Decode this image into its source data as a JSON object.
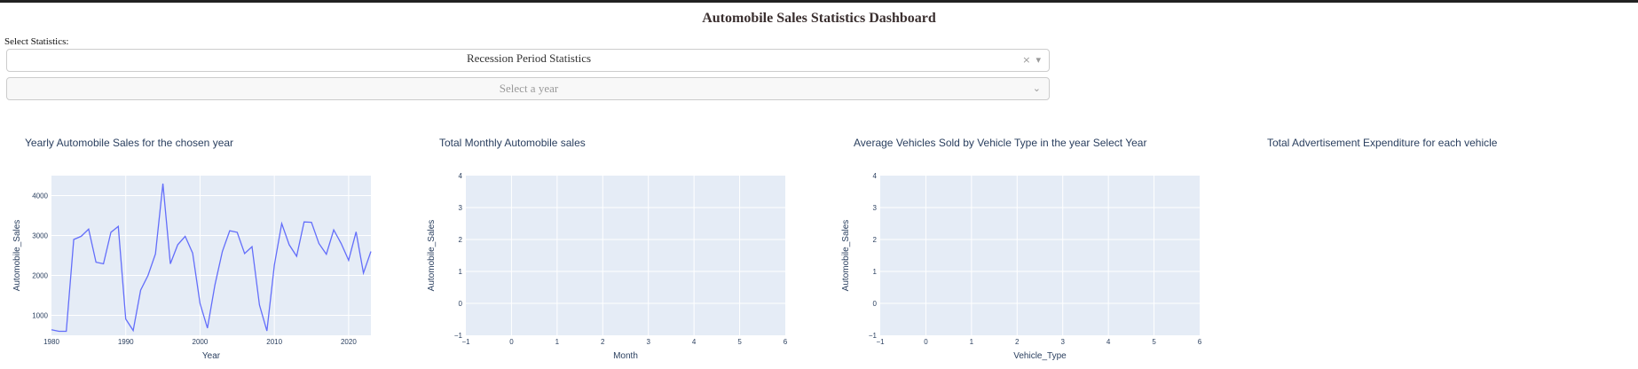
{
  "page": {
    "title": "Automobile Sales Statistics Dashboard",
    "statistics_label": "Select Statistics:",
    "statistics_value": "Recession Period Statistics",
    "year_placeholder": "Select a year",
    "clear_glyph": "×",
    "arrow_glyph": "▾",
    "arrow_glyph_disabled": "⌄"
  },
  "charts": [
    {
      "id": "yearly",
      "title": "Yearly Automobile Sales for the chosen year"
    },
    {
      "id": "monthly",
      "title": "Total Monthly Automobile sales"
    },
    {
      "id": "vehicle",
      "title": "Average Vehicles Sold by Vehicle Type in the year Select Year"
    },
    {
      "id": "ads",
      "title": "Total Advertisement Expenditure for each vehicle"
    }
  ],
  "chart_data": [
    {
      "type": "line",
      "title": "Yearly Automobile Sales for the chosen year",
      "xlabel": "Year",
      "ylabel": "Automobile_Sales",
      "xlim": [
        1980,
        2023
      ],
      "ylim": [
        500,
        4500
      ],
      "x_ticks": [
        1980,
        1990,
        2000,
        2010,
        2020
      ],
      "y_ticks": [
        1000,
        2000,
        3000,
        4000
      ],
      "color": "#636efa",
      "x": [
        1980,
        1981,
        1982,
        1983,
        1984,
        1985,
        1986,
        1987,
        1988,
        1989,
        1990,
        1991,
        1992,
        1993,
        1994,
        1995,
        1996,
        1997,
        1998,
        1999,
        2000,
        2001,
        2002,
        2003,
        2004,
        2005,
        2006,
        2007,
        2008,
        2009,
        2010,
        2011,
        2012,
        2013,
        2014,
        2015,
        2016,
        2017,
        2018,
        2019,
        2020,
        2021,
        2022,
        2023
      ],
      "values": [
        640,
        600,
        600,
        2900,
        2980,
        3160,
        2330,
        2290,
        3080,
        3230,
        910,
        620,
        1630,
        2000,
        2540,
        4300,
        2290,
        2770,
        2980,
        2560,
        1300,
        680,
        1760,
        2600,
        3120,
        3080,
        2550,
        2720,
        1260,
        610,
        2260,
        3300,
        2770,
        2480,
        3340,
        3330,
        2800,
        2530,
        3140,
        2800,
        2380,
        3090,
        2060,
        2600
      ]
    },
    {
      "type": "line",
      "title": "Total Monthly Automobile sales",
      "xlabel": "Month",
      "ylabel": "Automobile_Sales",
      "xlim": [
        -1,
        6
      ],
      "ylim": [
        -1,
        4
      ],
      "x_ticks": [
        -1,
        0,
        1,
        2,
        3,
        4,
        5,
        6
      ],
      "y_ticks": [
        -1,
        0,
        1,
        2,
        3,
        4
      ],
      "values": []
    },
    {
      "type": "bar",
      "title": "Average Vehicles Sold by Vehicle Type in the year Select Year",
      "xlabel": "Vehicle_Type",
      "ylabel": "Automobile_Sales",
      "xlim": [
        -1,
        6
      ],
      "ylim": [
        -1,
        4
      ],
      "x_ticks": [
        -1,
        0,
        1,
        2,
        3,
        4,
        5,
        6
      ],
      "y_ticks": [
        -1,
        0,
        1,
        2,
        3,
        4
      ],
      "values": []
    },
    {
      "type": "pie",
      "title": "Total Advertisement Expenditure for each vehicle",
      "values": []
    }
  ]
}
